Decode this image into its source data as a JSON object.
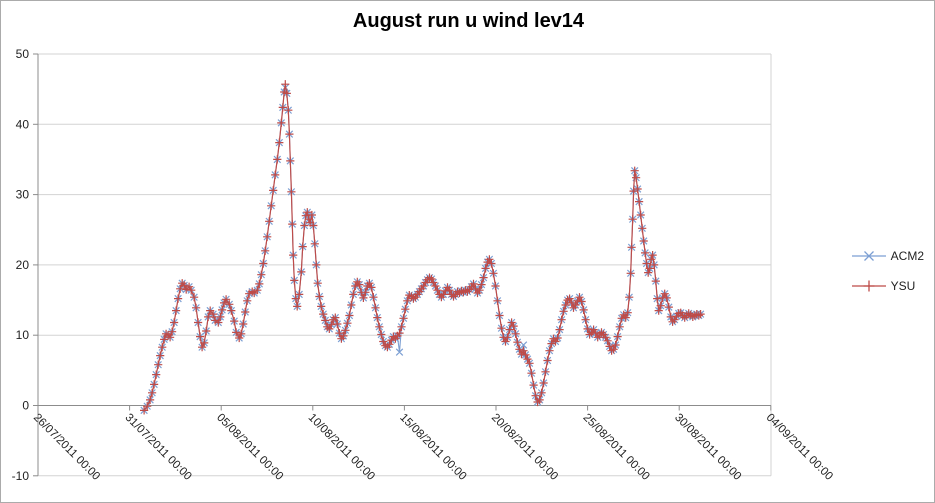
{
  "title": "August run u wind lev14",
  "legend": {
    "entries": [
      {
        "label": "ACM2"
      },
      {
        "label": "YSU"
      }
    ]
  },
  "colors": {
    "background": "#FFFFFF",
    "border": "#ABABAB",
    "grid": "#D3D3D3",
    "axis": "#8C8C8C",
    "tick_text": "#1F1F1F",
    "acm2": "#7C9FD3",
    "ysu": "#BE4B48"
  },
  "chart_data": {
    "type": "line",
    "title": "August run u wind lev14",
    "xlabel": "",
    "ylabel": "",
    "grid": "horizontal",
    "legend_position": "right",
    "ylim": [
      -10,
      50
    ],
    "y_ticks": [
      -10,
      0,
      10,
      20,
      30,
      40,
      50
    ],
    "x_epoch": "days since 26/07/2011 00:00",
    "x_tick_positions_days": [
      0,
      5,
      10,
      15,
      20,
      25,
      30,
      35,
      40
    ],
    "x_tick_labels": [
      "26/07/2011 00:00",
      "31/07/2011 00:00",
      "05/08/2011 00:00",
      "10/08/2011 00:00",
      "15/08/2011 00:00",
      "20/08/2011 00:00",
      "25/08/2011 00:00",
      "30/08/2011 00:00",
      "04/09/2011 00:00"
    ],
    "series": [
      {
        "name": "ACM2",
        "marker": "x",
        "color": "#7C9FD3",
        "data": "same_as_YSU",
        "overrides": [
          [
            13.5,
            45.2
          ],
          [
            19.73,
            7.6
          ],
          [
            26.5,
            8.6
          ]
        ]
      },
      {
        "name": "YSU",
        "marker": "plus",
        "color": "#BE4B48",
        "points": [
          [
            5.79,
            -0.7
          ],
          [
            5.96,
            -0.1
          ],
          [
            6.12,
            0.8
          ],
          [
            6.23,
            1.8
          ],
          [
            6.34,
            3.0
          ],
          [
            6.45,
            4.4
          ],
          [
            6.56,
            5.8
          ],
          [
            6.67,
            7.1
          ],
          [
            6.78,
            8.3
          ],
          [
            6.89,
            9.4
          ],
          [
            6.99,
            10.2
          ],
          [
            7.1,
            10.0
          ],
          [
            7.21,
            9.7
          ],
          [
            7.32,
            10.5
          ],
          [
            7.43,
            11.8
          ],
          [
            7.54,
            13.5
          ],
          [
            7.65,
            15.2
          ],
          [
            7.76,
            16.6
          ],
          [
            7.87,
            17.4
          ],
          [
            7.98,
            17.1
          ],
          [
            8.09,
            16.5
          ],
          [
            8.25,
            16.9
          ],
          [
            8.36,
            16.4
          ],
          [
            8.52,
            15.4
          ],
          [
            8.63,
            13.9
          ],
          [
            8.74,
            11.8
          ],
          [
            8.85,
            9.8
          ],
          [
            8.96,
            8.3
          ],
          [
            9.07,
            8.9
          ],
          [
            9.18,
            10.6
          ],
          [
            9.29,
            12.6
          ],
          [
            9.4,
            13.5
          ],
          [
            9.56,
            13.0
          ],
          [
            9.67,
            12.1
          ],
          [
            9.84,
            11.8
          ],
          [
            9.95,
            12.6
          ],
          [
            10.05,
            13.6
          ],
          [
            10.16,
            14.6
          ],
          [
            10.27,
            15.1
          ],
          [
            10.44,
            14.4
          ],
          [
            10.55,
            13.5
          ],
          [
            10.71,
            12.0
          ],
          [
            10.82,
            10.4
          ],
          [
            10.98,
            9.6
          ],
          [
            11.09,
            10.2
          ],
          [
            11.2,
            11.6
          ],
          [
            11.31,
            13.3
          ],
          [
            11.42,
            14.9
          ],
          [
            11.53,
            15.9
          ],
          [
            11.69,
            16.2
          ],
          [
            11.8,
            16.0
          ],
          [
            11.97,
            16.4
          ],
          [
            12.08,
            17.3
          ],
          [
            12.19,
            18.6
          ],
          [
            12.3,
            20.2
          ],
          [
            12.4,
            22.0
          ],
          [
            12.51,
            24.0
          ],
          [
            12.62,
            26.2
          ],
          [
            12.73,
            28.4
          ],
          [
            12.84,
            30.6
          ],
          [
            12.95,
            32.8
          ],
          [
            13.06,
            35.0
          ],
          [
            13.17,
            37.4
          ],
          [
            13.28,
            40.2
          ],
          [
            13.36,
            42.4
          ],
          [
            13.44,
            44.6
          ],
          [
            13.5,
            45.7
          ],
          [
            13.58,
            44.4
          ],
          [
            13.66,
            42.0
          ],
          [
            13.72,
            38.6
          ],
          [
            13.77,
            34.8
          ],
          [
            13.83,
            30.4
          ],
          [
            13.88,
            25.8
          ],
          [
            13.93,
            21.4
          ],
          [
            13.99,
            17.8
          ],
          [
            14.07,
            15.2
          ],
          [
            14.15,
            14.1
          ],
          [
            14.26,
            15.8
          ],
          [
            14.37,
            19.0
          ],
          [
            14.45,
            22.6
          ],
          [
            14.54,
            25.6
          ],
          [
            14.62,
            27.0
          ],
          [
            14.7,
            27.5
          ],
          [
            14.78,
            26.5
          ],
          [
            14.86,
            26.0
          ],
          [
            14.95,
            27.1
          ],
          [
            15.03,
            25.6
          ],
          [
            15.11,
            23.0
          ],
          [
            15.19,
            20.0
          ],
          [
            15.27,
            17.4
          ],
          [
            15.36,
            15.5
          ],
          [
            15.46,
            14.1
          ],
          [
            15.57,
            13.0
          ],
          [
            15.68,
            12.1
          ],
          [
            15.79,
            11.2
          ],
          [
            15.9,
            10.9
          ],
          [
            16.01,
            11.5
          ],
          [
            16.12,
            12.2
          ],
          [
            16.23,
            12.5
          ],
          [
            16.34,
            11.6
          ],
          [
            16.45,
            10.3
          ],
          [
            16.56,
            9.5
          ],
          [
            16.67,
            9.9
          ],
          [
            16.78,
            10.7
          ],
          [
            16.89,
            11.7
          ],
          [
            17.0,
            12.8
          ],
          [
            17.1,
            14.3
          ],
          [
            17.21,
            15.8
          ],
          [
            17.32,
            17.0
          ],
          [
            17.43,
            17.6
          ],
          [
            17.54,
            17.2
          ],
          [
            17.65,
            16.1
          ],
          [
            17.76,
            15.3
          ],
          [
            17.87,
            16.1
          ],
          [
            17.98,
            17.0
          ],
          [
            18.09,
            17.4
          ],
          [
            18.2,
            16.8
          ],
          [
            18.31,
            15.4
          ],
          [
            18.42,
            13.9
          ],
          [
            18.52,
            12.5
          ],
          [
            18.63,
            11.2
          ],
          [
            18.74,
            10.1
          ],
          [
            18.85,
            9.1
          ],
          [
            18.96,
            8.5
          ],
          [
            19.07,
            8.3
          ],
          [
            19.18,
            8.7
          ],
          [
            19.29,
            9.3
          ],
          [
            19.4,
            9.8
          ],
          [
            19.51,
            9.5
          ],
          [
            19.62,
            9.9
          ],
          [
            19.73,
            10.3
          ],
          [
            19.84,
            11.2
          ],
          [
            19.95,
            12.4
          ],
          [
            20.05,
            13.7
          ],
          [
            20.16,
            14.9
          ],
          [
            20.27,
            15.7
          ],
          [
            20.38,
            15.5
          ],
          [
            20.49,
            15.2
          ],
          [
            20.6,
            15.4
          ],
          [
            20.71,
            15.8
          ],
          [
            20.82,
            16.2
          ],
          [
            20.93,
            16.6
          ],
          [
            21.04,
            17.0
          ],
          [
            21.15,
            17.5
          ],
          [
            21.26,
            17.9
          ],
          [
            21.37,
            18.2
          ],
          [
            21.48,
            18.0
          ],
          [
            21.58,
            17.5
          ],
          [
            21.69,
            17.0
          ],
          [
            21.8,
            16.4
          ],
          [
            21.91,
            15.8
          ],
          [
            22.02,
            15.4
          ],
          [
            22.13,
            15.8
          ],
          [
            22.24,
            16.3
          ],
          [
            22.35,
            16.8
          ],
          [
            22.46,
            16.4
          ],
          [
            22.57,
            15.8
          ],
          [
            22.68,
            15.5
          ],
          [
            22.79,
            15.8
          ],
          [
            22.9,
            16.2
          ],
          [
            23.01,
            16.0
          ],
          [
            23.11,
            16.3
          ],
          [
            23.22,
            16.1
          ],
          [
            23.33,
            16.4
          ],
          [
            23.44,
            16.2
          ],
          [
            23.55,
            16.5
          ],
          [
            23.66,
            16.9
          ],
          [
            23.77,
            17.3
          ],
          [
            23.88,
            16.6
          ],
          [
            23.99,
            16.0
          ],
          [
            24.1,
            16.4
          ],
          [
            24.21,
            17.2
          ],
          [
            24.32,
            18.2
          ],
          [
            24.43,
            19.5
          ],
          [
            24.54,
            20.4
          ],
          [
            24.64,
            20.8
          ],
          [
            24.75,
            20.2
          ],
          [
            24.86,
            18.8
          ],
          [
            24.97,
            17.0
          ],
          [
            25.08,
            14.9
          ],
          [
            25.19,
            12.8
          ],
          [
            25.3,
            11.0
          ],
          [
            25.41,
            9.7
          ],
          [
            25.52,
            9.1
          ],
          [
            25.63,
            9.7
          ],
          [
            25.74,
            10.8
          ],
          [
            25.85,
            11.8
          ],
          [
            25.96,
            11.3
          ],
          [
            26.07,
            10.2
          ],
          [
            26.17,
            9.0
          ],
          [
            26.28,
            8.0
          ],
          [
            26.39,
            7.3
          ],
          [
            26.5,
            7.8
          ],
          [
            26.61,
            7.2
          ],
          [
            26.72,
            6.6
          ],
          [
            26.83,
            6.0
          ],
          [
            26.94,
            4.6
          ],
          [
            27.05,
            2.9
          ],
          [
            27.16,
            1.4
          ],
          [
            27.27,
            0.5
          ],
          [
            27.38,
            0.8
          ],
          [
            27.49,
            1.8
          ],
          [
            27.6,
            3.2
          ],
          [
            27.7,
            4.8
          ],
          [
            27.81,
            6.4
          ],
          [
            27.92,
            7.8
          ],
          [
            28.03,
            8.8
          ],
          [
            28.14,
            9.5
          ],
          [
            28.25,
            9.1
          ],
          [
            28.36,
            9.6
          ],
          [
            28.47,
            10.8
          ],
          [
            28.58,
            12.2
          ],
          [
            28.69,
            13.4
          ],
          [
            28.8,
            14.3
          ],
          [
            28.91,
            15.0
          ],
          [
            29.02,
            15.2
          ],
          [
            29.13,
            14.6
          ],
          [
            29.23,
            13.9
          ],
          [
            29.34,
            14.3
          ],
          [
            29.45,
            14.9
          ],
          [
            29.56,
            15.4
          ],
          [
            29.67,
            14.8
          ],
          [
            29.78,
            13.6
          ],
          [
            29.89,
            12.2
          ],
          [
            30.0,
            10.9
          ],
          [
            30.11,
            10.1
          ],
          [
            30.22,
            10.4
          ],
          [
            30.33,
            10.8
          ],
          [
            30.44,
            10.3
          ],
          [
            30.55,
            9.7
          ],
          [
            30.66,
            10.0
          ],
          [
            30.76,
            10.4
          ],
          [
            30.87,
            10.1
          ],
          [
            30.98,
            9.7
          ],
          [
            31.09,
            9.2
          ],
          [
            31.2,
            8.4
          ],
          [
            31.31,
            7.8
          ],
          [
            31.42,
            8.0
          ],
          [
            31.53,
            8.6
          ],
          [
            31.64,
            9.8
          ],
          [
            31.75,
            11.2
          ],
          [
            31.86,
            12.4
          ],
          [
            31.97,
            12.9
          ],
          [
            32.08,
            12.5
          ],
          [
            32.19,
            13.2
          ],
          [
            32.27,
            15.4
          ],
          [
            32.35,
            18.8
          ],
          [
            32.4,
            22.5
          ],
          [
            32.46,
            26.5
          ],
          [
            32.51,
            30.5
          ],
          [
            32.57,
            33.4
          ],
          [
            32.65,
            32.4
          ],
          [
            32.73,
            30.8
          ],
          [
            32.81,
            29.0
          ],
          [
            32.9,
            27.1
          ],
          [
            32.98,
            25.2
          ],
          [
            33.06,
            23.4
          ],
          [
            33.14,
            21.7
          ],
          [
            33.22,
            20.2
          ],
          [
            33.31,
            18.9
          ],
          [
            33.39,
            19.5
          ],
          [
            33.47,
            20.8
          ],
          [
            33.55,
            21.4
          ],
          [
            33.63,
            20.0
          ],
          [
            33.72,
            17.7
          ],
          [
            33.8,
            15.2
          ],
          [
            33.88,
            13.5
          ],
          [
            33.99,
            14.2
          ],
          [
            34.1,
            15.3
          ],
          [
            34.21,
            15.9
          ],
          [
            34.32,
            15.3
          ],
          [
            34.43,
            14.0
          ],
          [
            34.54,
            12.6
          ],
          [
            34.64,
            11.9
          ],
          [
            34.75,
            12.2
          ],
          [
            34.86,
            12.7
          ],
          [
            34.97,
            13.1
          ],
          [
            35.08,
            13.2
          ],
          [
            35.19,
            12.8
          ],
          [
            35.3,
            12.5
          ],
          [
            35.41,
            12.8
          ],
          [
            35.52,
            13.1
          ],
          [
            35.63,
            12.9
          ],
          [
            35.74,
            12.6
          ],
          [
            35.85,
            12.8
          ],
          [
            35.96,
            13.0
          ],
          [
            36.07,
            12.8
          ],
          [
            36.17,
            13.0
          ]
        ]
      }
    ]
  }
}
